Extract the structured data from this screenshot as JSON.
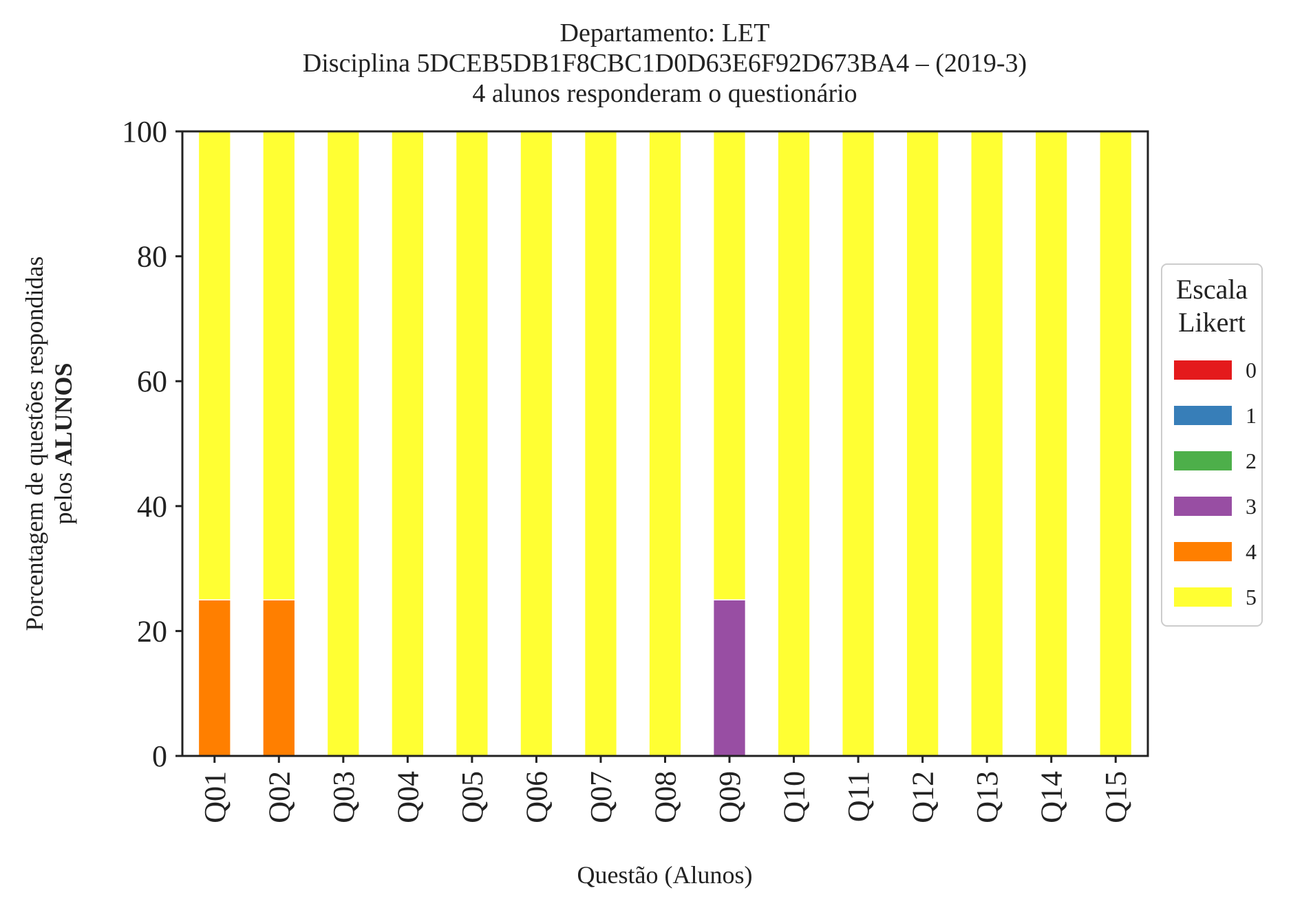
{
  "chart_data": {
    "type": "bar",
    "stacked": true,
    "title_lines": [
      "Departamento: LET",
      "Disciplina 5DCEB5DB1F8CBC1D0D63E6F92D673BA4 – (2019-3)",
      "4 alunos responderam o questionário"
    ],
    "xlabel": "Questão (Alunos)",
    "ylabel_line1": "Porcentagem de questões respondidas",
    "ylabel_line2_prefix": "pelos ",
    "ylabel_line2_bold": "ALUNOS",
    "ylim": [
      0,
      100
    ],
    "yticks": [
      "0",
      "20",
      "40",
      "60",
      "80",
      "100"
    ],
    "grid": false,
    "legend": {
      "title_lines": [
        "Escala",
        "Likert"
      ],
      "placement": "right",
      "entries": [
        "0",
        "1",
        "2",
        "3",
        "4",
        "5"
      ]
    },
    "colors": [
      "#e41a1c",
      "#377eb8",
      "#4daf4a",
      "#984ea3",
      "#ff7f00",
      "#ffff33"
    ],
    "categories": [
      "Q01",
      "Q02",
      "Q03",
      "Q04",
      "Q05",
      "Q06",
      "Q07",
      "Q08",
      "Q09",
      "Q10",
      "Q11",
      "Q12",
      "Q13",
      "Q14",
      "Q15"
    ],
    "series": [
      {
        "name": "0",
        "values": [
          0,
          0,
          0,
          0,
          0,
          0,
          0,
          0,
          0,
          0,
          0,
          0,
          0,
          0,
          0
        ]
      },
      {
        "name": "1",
        "values": [
          0,
          0,
          0,
          0,
          0,
          0,
          0,
          0,
          0,
          0,
          0,
          0,
          0,
          0,
          0
        ]
      },
      {
        "name": "2",
        "values": [
          0,
          0,
          0,
          0,
          0,
          0,
          0,
          0,
          0,
          0,
          0,
          0,
          0,
          0,
          0
        ]
      },
      {
        "name": "3",
        "values": [
          0,
          0,
          0,
          0,
          0,
          0,
          0,
          0,
          25,
          0,
          0,
          0,
          0,
          0,
          0
        ]
      },
      {
        "name": "4",
        "values": [
          25,
          25,
          0,
          0,
          0,
          0,
          0,
          0,
          0,
          0,
          0,
          0,
          0,
          0,
          0
        ]
      },
      {
        "name": "5",
        "values": [
          75,
          75,
          100,
          100,
          100,
          100,
          100,
          100,
          75,
          100,
          100,
          100,
          100,
          100,
          100
        ]
      }
    ]
  }
}
